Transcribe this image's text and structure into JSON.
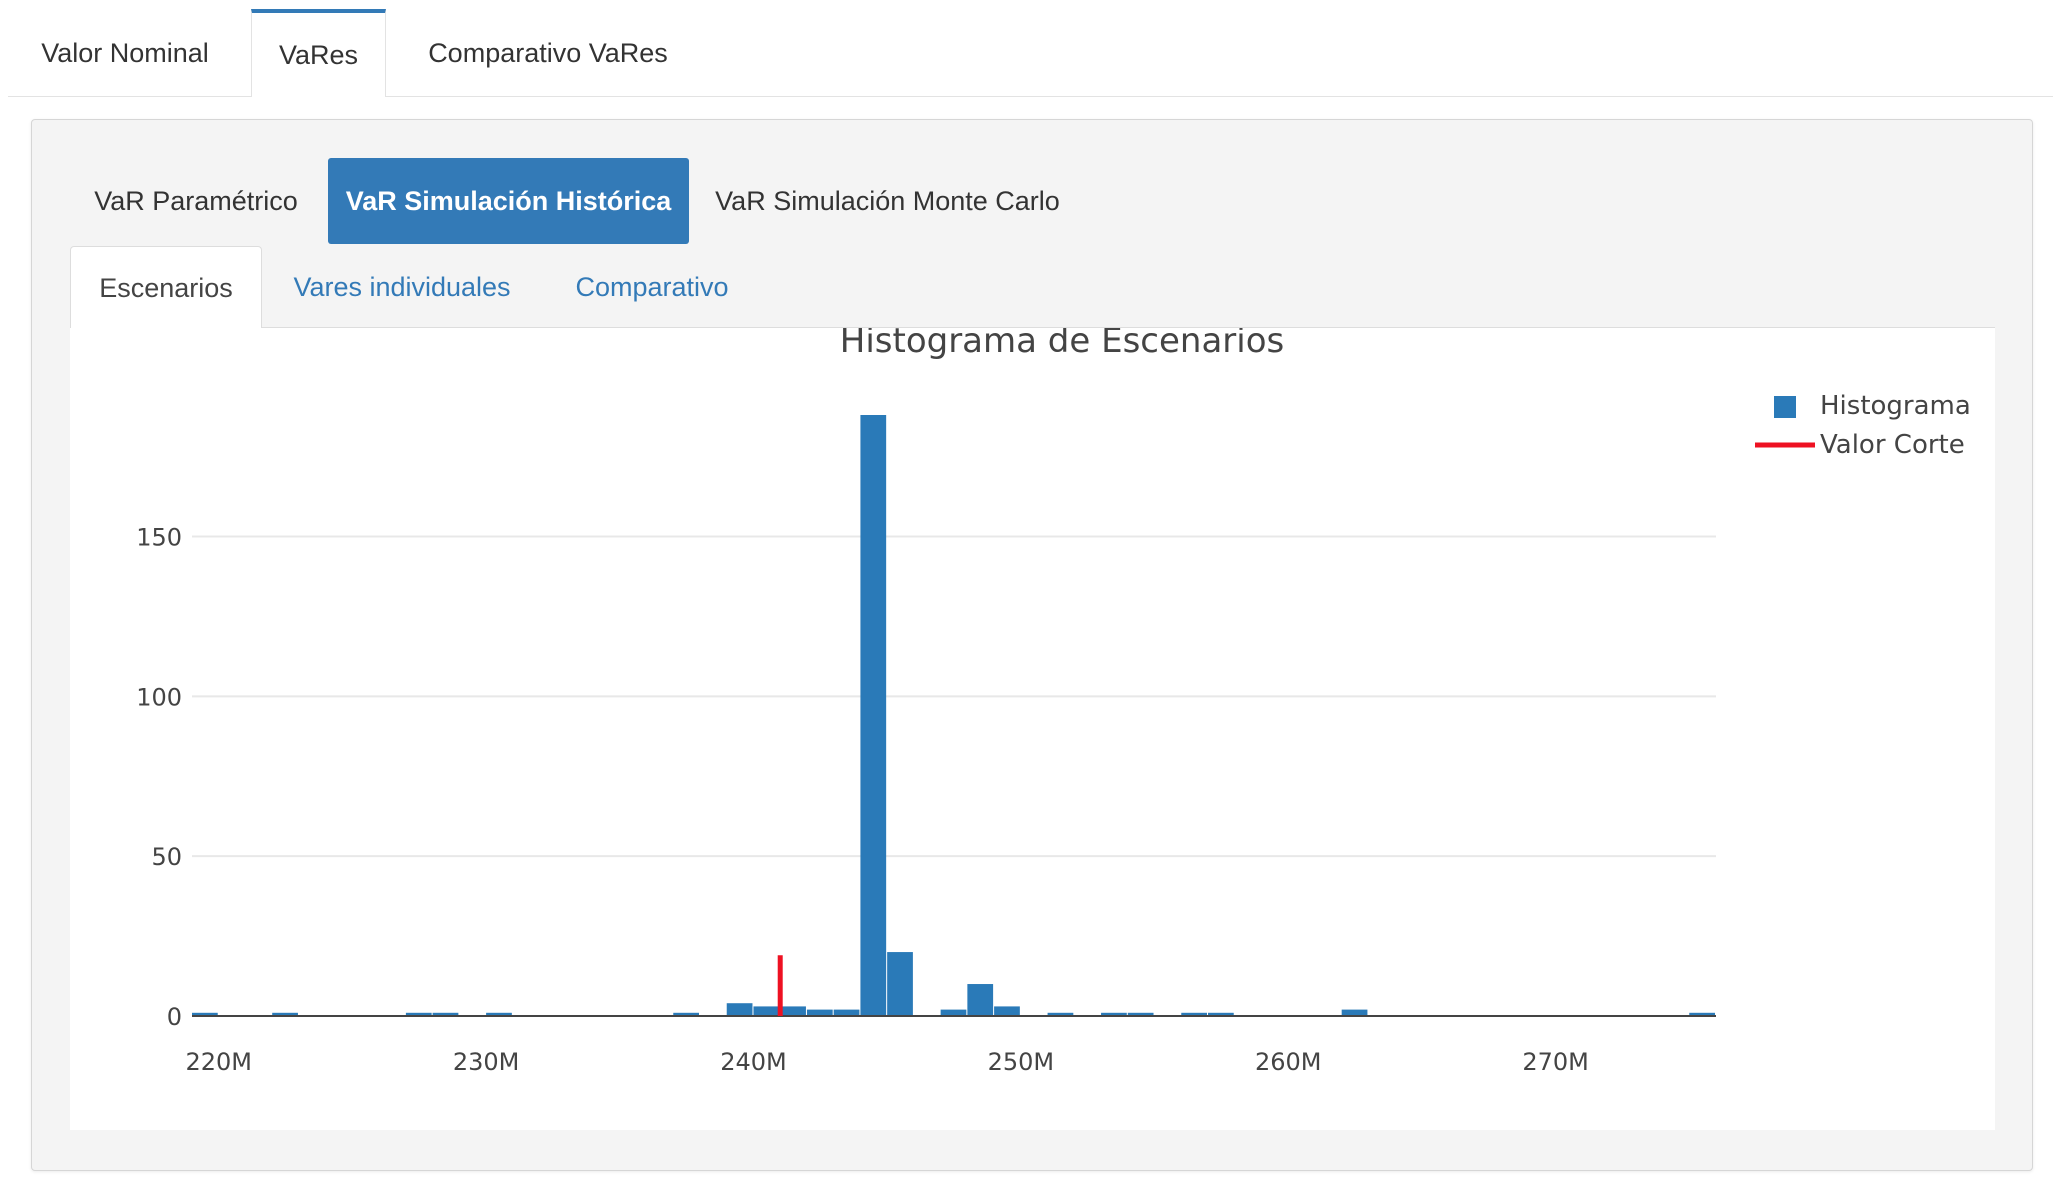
{
  "top_tabs": [
    {
      "label": "Valor Nominal",
      "active": false
    },
    {
      "label": "VaRes",
      "active": true
    },
    {
      "label": "Comparativo VaRes",
      "active": false
    }
  ],
  "method_pills": [
    {
      "label": "VaR Paramétrico",
      "active": false
    },
    {
      "label": "VaR Simulación Histórica",
      "active": true
    },
    {
      "label": "VaR Simulación Monte Carlo",
      "active": false
    }
  ],
  "sub_tabs": [
    {
      "label": "Escenarios",
      "active": true
    },
    {
      "label": "Vares individuales",
      "active": false
    },
    {
      "label": "Comparativo",
      "active": false
    }
  ],
  "colors": {
    "accent": "#337ab7",
    "bar": "#2a7ab8",
    "cutoff": "#ee1122"
  },
  "chart_data": {
    "type": "bar",
    "title": "Histograma de Escenarios",
    "xlabel": "",
    "ylabel": "",
    "x_unit_suffix": "M",
    "bin_width": 1,
    "xlim": [
      219,
      276
    ],
    "ylim": [
      0,
      188
    ],
    "xticks": [
      220,
      230,
      240,
      250,
      260,
      270
    ],
    "xtick_labels": [
      "220M",
      "230M",
      "240M",
      "250M",
      "260M",
      "270M"
    ],
    "yticks": [
      0,
      50,
      100,
      150
    ],
    "ytick_labels": [
      "0",
      "50",
      "100",
      "150"
    ],
    "grid": true,
    "legend_position": "top-right",
    "series": [
      {
        "name": "Histograma",
        "type": "bar",
        "bins": [
          {
            "x": 219.5,
            "y": 1
          },
          {
            "x": 222.5,
            "y": 1
          },
          {
            "x": 227.5,
            "y": 1
          },
          {
            "x": 228.5,
            "y": 1
          },
          {
            "x": 230.5,
            "y": 1
          },
          {
            "x": 237.5,
            "y": 1
          },
          {
            "x": 239.5,
            "y": 4
          },
          {
            "x": 240.5,
            "y": 3
          },
          {
            "x": 241.5,
            "y": 3
          },
          {
            "x": 242.5,
            "y": 2
          },
          {
            "x": 243.5,
            "y": 2
          },
          {
            "x": 244.5,
            "y": 188
          },
          {
            "x": 245.5,
            "y": 20
          },
          {
            "x": 247.5,
            "y": 2
          },
          {
            "x": 248.5,
            "y": 10
          },
          {
            "x": 249.5,
            "y": 3
          },
          {
            "x": 251.5,
            "y": 1
          },
          {
            "x": 253.5,
            "y": 1
          },
          {
            "x": 254.5,
            "y": 1
          },
          {
            "x": 256.5,
            "y": 1
          },
          {
            "x": 257.5,
            "y": 1
          },
          {
            "x": 262.5,
            "y": 2
          },
          {
            "x": 275.5,
            "y": 1
          }
        ]
      },
      {
        "name": "Valor Corte",
        "type": "line",
        "x": 241,
        "y": [
          0,
          19
        ]
      }
    ]
  }
}
